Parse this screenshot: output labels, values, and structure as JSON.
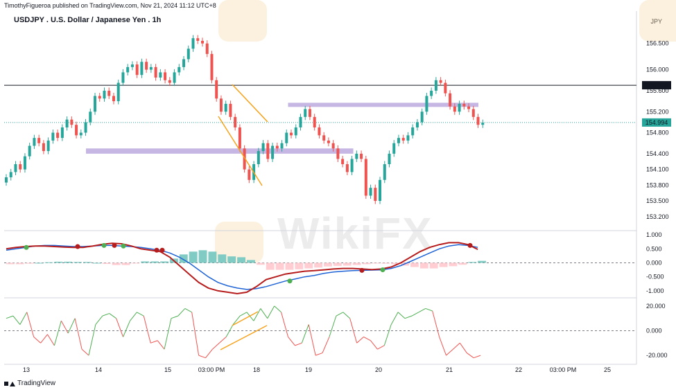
{
  "header": {
    "published": "TimothyFigueroa published on TradingView.com, Nov 21, 2024 11:12 UTC+8",
    "title": "USDJPY . U.S. Dollar / Japanese Yen . 1h",
    "currency": "JPY"
  },
  "footer": {
    "brand": "TradingView"
  },
  "watermark": {
    "text": "WikiFX"
  },
  "colors": {
    "up": "#26a69a",
    "down": "#ef5350",
    "zone": "#b39ddb",
    "pattern": "#f7a21b",
    "macd_line": "#1e63d6",
    "signal_line": "#b71c1c",
    "signal_green": "#4caf50",
    "hline": "#131722",
    "last_price": "#26a69a"
  },
  "chart_data": [
    {
      "type": "candlestick",
      "title": "USDJPY . U.S. Dollar / Japanese Yen . 1h",
      "ylim": [
        153.0,
        156.8
      ],
      "y_ticks": [
        "156.500",
        "156.000",
        "155.600",
        "155.200",
        "154.800",
        "154.400",
        "154.100",
        "153.800",
        "153.500",
        "153.200"
      ],
      "x_ticks": [
        "13",
        "14",
        "15",
        "03:00 PM",
        "18",
        "19",
        "20",
        "21",
        "22",
        "03:00 PM",
        "25"
      ],
      "horizontal_line": {
        "value": 155.704,
        "label": "155.704"
      },
      "last_price": {
        "value": 154.994,
        "label": "154.994"
      },
      "zones": [
        {
          "from_x": 0.17,
          "to_x": 0.74,
          "low": 154.4,
          "high": 154.5
        },
        {
          "from_x": 0.59,
          "to_x": 1.0,
          "low": 155.3,
          "high": 155.37
        }
      ],
      "closes": [
        153.95,
        154.05,
        154.2,
        154.1,
        154.35,
        154.55,
        154.7,
        154.6,
        154.45,
        154.65,
        154.8,
        154.7,
        154.9,
        155.05,
        154.95,
        154.75,
        154.8,
        155.0,
        155.2,
        155.5,
        155.45,
        155.6,
        155.5,
        155.4,
        155.75,
        155.95,
        156.05,
        156.1,
        155.9,
        156.15,
        156.0,
        156.05,
        155.85,
        155.95,
        155.8,
        155.75,
        155.95,
        156.05,
        156.2,
        156.4,
        156.6,
        156.55,
        156.5,
        156.3,
        155.8,
        155.45,
        155.2,
        155.35,
        155.1,
        154.9,
        154.5,
        154.1,
        153.9,
        154.2,
        154.45,
        154.6,
        154.3,
        154.55,
        154.5,
        154.6,
        154.8,
        154.75,
        154.9,
        155.1,
        155.25,
        155.1,
        154.9,
        154.75,
        154.65,
        154.6,
        154.5,
        154.3,
        154.2,
        154.05,
        154.3,
        154.4,
        154.3,
        153.6,
        153.75,
        153.5,
        153.9,
        154.2,
        154.4,
        154.6,
        154.7,
        154.65,
        154.75,
        154.9,
        155.0,
        155.2,
        155.5,
        155.6,
        155.8,
        155.75,
        155.55,
        155.3,
        155.2,
        155.35,
        155.3,
        155.25,
        155.1,
        154.95,
        154.99
      ],
      "opens": [
        153.85,
        153.95,
        154.05,
        154.2,
        154.1,
        154.35,
        154.55,
        154.7,
        154.6,
        154.45,
        154.65,
        154.8,
        154.7,
        154.9,
        155.05,
        154.95,
        154.75,
        154.8,
        155.0,
        155.2,
        155.5,
        155.45,
        155.6,
        155.5,
        155.4,
        155.75,
        155.95,
        156.05,
        156.1,
        155.9,
        156.15,
        156.0,
        156.05,
        155.85,
        155.95,
        155.8,
        155.75,
        155.95,
        156.05,
        156.2,
        156.4,
        156.6,
        156.55,
        156.5,
        156.3,
        155.8,
        155.45,
        155.2,
        155.35,
        155.1,
        154.9,
        154.5,
        154.1,
        153.9,
        154.2,
        154.45,
        154.6,
        154.3,
        154.55,
        154.5,
        154.6,
        154.8,
        154.75,
        154.9,
        155.1,
        155.25,
        155.1,
        154.9,
        154.75,
        154.65,
        154.6,
        154.5,
        154.3,
        154.2,
        154.05,
        154.3,
        154.4,
        154.3,
        153.6,
        153.75,
        153.5,
        153.9,
        154.2,
        154.4,
        154.6,
        154.7,
        154.65,
        154.75,
        154.9,
        155.0,
        155.2,
        155.5,
        155.6,
        155.8,
        155.75,
        155.55,
        155.3,
        155.2,
        155.35,
        155.3,
        155.25,
        155.1,
        154.95
      ]
    },
    {
      "type": "line",
      "title": "",
      "ylim": [
        -1.2,
        1.1
      ],
      "y_ticks": [
        "1.000",
        "0.500",
        "0.000",
        "-0.500",
        "-1.000"
      ],
      "series": [
        {
          "values": [
            0.45,
            0.5,
            0.55,
            0.6,
            0.62,
            0.62,
            0.6,
            0.58,
            0.58,
            0.6,
            0.62,
            0.62,
            0.6,
            0.58,
            0.55,
            0.5,
            0.45,
            0.35,
            0.2,
            0.0,
            -0.25,
            -0.5,
            -0.7,
            -0.82,
            -0.9,
            -0.95,
            -0.92,
            -0.85,
            -0.75,
            -0.65,
            -0.58,
            -0.5,
            -0.45,
            -0.38,
            -0.33,
            -0.3,
            -0.28,
            -0.27,
            -0.26,
            -0.25,
            -0.2,
            -0.1,
            0.05,
            0.2,
            0.35,
            0.5,
            0.6,
            0.65,
            0.62,
            0.55
          ]
        },
        {
          "values": [
            0.5,
            0.55,
            0.58,
            0.6,
            0.6,
            0.58,
            0.56,
            0.55,
            0.55,
            0.6,
            0.66,
            0.7,
            0.68,
            0.6,
            0.5,
            0.45,
            0.4,
            0.2,
            -0.1,
            -0.4,
            -0.7,
            -0.9,
            -1.0,
            -1.05,
            -1.1,
            -1.05,
            -0.85,
            -0.6,
            -0.5,
            -0.4,
            -0.35,
            -0.3,
            -0.28,
            -0.25,
            -0.22,
            -0.2,
            -0.2,
            -0.22,
            -0.24,
            -0.22,
            -0.15,
            0.0,
            0.2,
            0.4,
            0.55,
            0.65,
            0.72,
            0.72,
            0.65,
            0.48
          ]
        }
      ],
      "histogram": [
        -0.05,
        -0.05,
        -0.03,
        0.0,
        0.02,
        0.04,
        0.04,
        0.03,
        0.03,
        0.0,
        -0.04,
        -0.08,
        -0.08,
        -0.02,
        0.05,
        0.05,
        0.05,
        0.15,
        0.3,
        0.4,
        0.45,
        0.4,
        0.3,
        0.23,
        0.2,
        0.1,
        -0.07,
        -0.25,
        -0.25,
        -0.25,
        -0.23,
        -0.2,
        -0.17,
        -0.13,
        -0.11,
        -0.1,
        -0.08,
        -0.05,
        -0.02,
        -0.03,
        -0.05,
        -0.1,
        -0.15,
        -0.2,
        -0.2,
        -0.15,
        -0.12,
        -0.07,
        0.03,
        0.07
      ]
    },
    {
      "type": "line",
      "title": "",
      "ylim": [
        -25,
        25
      ],
      "y_ticks": [
        "20.000",
        "0.000",
        "-20.000"
      ],
      "series": [
        {
          "values": [
            10,
            12,
            5,
            15,
            -5,
            -10,
            -3,
            -12,
            8,
            -2,
            10,
            -15,
            -20,
            5,
            12,
            14,
            10,
            -5,
            8,
            15,
            12,
            -10,
            -8,
            -15,
            10,
            12,
            18,
            15,
            -20,
            -22,
            -15,
            -10,
            -5,
            5,
            12,
            15,
            8,
            18,
            10,
            20,
            15,
            -5,
            -12,
            -10,
            5,
            -20,
            -18,
            -5,
            12,
            15,
            10,
            -10,
            -5,
            -8,
            -15,
            -12,
            5,
            15,
            10,
            12,
            15,
            18,
            16,
            -5,
            -20,
            -15,
            -10,
            -18,
            -22,
            -20
          ]
        }
      ]
    }
  ]
}
